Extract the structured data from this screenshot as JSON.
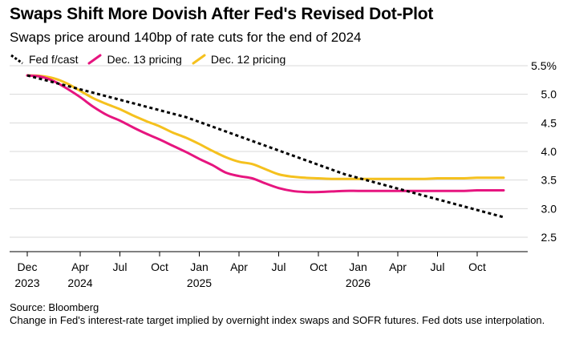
{
  "header": {
    "title": "Swaps Shift More Dovish After Fed's Revised Dot-Plot",
    "subtitle": "Swaps price around 140bp of rate cuts for the end of 2024"
  },
  "colors": {
    "fed": "#000000",
    "dec13": "#e6157f",
    "dec12": "#f5c11e",
    "grid": "#d9d9d9",
    "axis": "#000000"
  },
  "footer": {
    "source": "Source: Bloomberg",
    "note": "Change in Fed's interest-rate target implied by overnight index swaps and SOFR futures. Fed dots use interpolation."
  },
  "chart_data": {
    "type": "line",
    "title": "Swaps Shift More Dovish After Fed's Revised Dot-Plot",
    "subtitle": "Swaps price around 140bp of rate cuts for the end of 2024",
    "xlabel": "",
    "ylabel": "",
    "xlim": [
      "2023-12",
      "2026-12"
    ],
    "ylim": [
      2.5,
      5.5
    ],
    "y_ticks": [
      {
        "value": 5.5,
        "label": "5.5%"
      },
      {
        "value": 5.0,
        "label": "5.0"
      },
      {
        "value": 4.5,
        "label": "4.5"
      },
      {
        "value": 4.0,
        "label": "4.0"
      },
      {
        "value": 3.5,
        "label": "3.5"
      },
      {
        "value": 3.0,
        "label": "3.0"
      },
      {
        "value": 2.5,
        "label": "2.5"
      }
    ],
    "x_ticks": [
      {
        "value": "2023-12",
        "label": "Dec",
        "year": "2023"
      },
      {
        "value": "2024-04",
        "label": "Apr",
        "year": "2024"
      },
      {
        "value": "2024-07",
        "label": "Jul",
        "year": ""
      },
      {
        "value": "2024-10",
        "label": "Oct",
        "year": ""
      },
      {
        "value": "2025-01",
        "label": "Jan",
        "year": "2025"
      },
      {
        "value": "2025-04",
        "label": "Apr",
        "year": ""
      },
      {
        "value": "2025-07",
        "label": "Jul",
        "year": ""
      },
      {
        "value": "2025-10",
        "label": "Oct",
        "year": ""
      },
      {
        "value": "2026-01",
        "label": "Jan",
        "year": "2026"
      },
      {
        "value": "2026-04",
        "label": "Apr",
        "year": ""
      },
      {
        "value": "2026-07",
        "label": "Jul",
        "year": ""
      },
      {
        "value": "2026-10",
        "label": "Oct",
        "year": ""
      }
    ],
    "grid": true,
    "legend_position": "top-left",
    "series": [
      {
        "name": "Fed f/cast",
        "style": "dashed",
        "color": "#000000",
        "x": [
          "2023-12",
          "2024-12",
          "2025-12",
          "2026-12"
        ],
        "values": [
          5.33,
          4.6,
          3.6,
          2.85
        ]
      },
      {
        "name": "Dec. 13 pricing",
        "style": "solid",
        "color": "#e6157f",
        "x": [
          "2023-12",
          "2024-01",
          "2024-02",
          "2024-03",
          "2024-04",
          "2024-05",
          "2024-06",
          "2024-07",
          "2024-08",
          "2024-09",
          "2024-10",
          "2024-11",
          "2024-12",
          "2025-01",
          "2025-02",
          "2025-03",
          "2025-04",
          "2025-05",
          "2025-06",
          "2025-07",
          "2025-08",
          "2025-09",
          "2025-10",
          "2025-11",
          "2025-12",
          "2026-01",
          "2026-02",
          "2026-03",
          "2026-04",
          "2026-05",
          "2026-06",
          "2026-07",
          "2026-08",
          "2026-09",
          "2026-10",
          "2026-11",
          "2026-12"
        ],
        "values": [
          5.33,
          5.31,
          5.23,
          5.1,
          4.95,
          4.78,
          4.64,
          4.54,
          4.42,
          4.31,
          4.21,
          4.1,
          3.99,
          3.87,
          3.76,
          3.63,
          3.57,
          3.53,
          3.44,
          3.36,
          3.31,
          3.29,
          3.29,
          3.3,
          3.31,
          3.31,
          3.31,
          3.31,
          3.31,
          3.31,
          3.31,
          3.31,
          3.31,
          3.31,
          3.32,
          3.32,
          3.32
        ]
      },
      {
        "name": "Dec. 12 pricing",
        "style": "solid",
        "color": "#f5c11e",
        "x": [
          "2023-12",
          "2024-01",
          "2024-02",
          "2024-03",
          "2024-04",
          "2024-05",
          "2024-06",
          "2024-07",
          "2024-08",
          "2024-09",
          "2024-10",
          "2024-11",
          "2024-12",
          "2025-01",
          "2025-02",
          "2025-03",
          "2025-04",
          "2025-05",
          "2025-06",
          "2025-07",
          "2025-08",
          "2025-09",
          "2025-10",
          "2025-11",
          "2025-12",
          "2026-01",
          "2026-02",
          "2026-03",
          "2026-04",
          "2026-05",
          "2026-06",
          "2026-07",
          "2026-08",
          "2026-09",
          "2026-10",
          "2026-11",
          "2026-12"
        ],
        "values": [
          5.33,
          5.32,
          5.28,
          5.19,
          5.06,
          4.93,
          4.83,
          4.74,
          4.63,
          4.53,
          4.44,
          4.33,
          4.24,
          4.13,
          4.01,
          3.9,
          3.82,
          3.78,
          3.69,
          3.6,
          3.56,
          3.54,
          3.53,
          3.52,
          3.52,
          3.52,
          3.52,
          3.52,
          3.52,
          3.52,
          3.52,
          3.53,
          3.53,
          3.53,
          3.54,
          3.54,
          3.54
        ]
      }
    ]
  }
}
